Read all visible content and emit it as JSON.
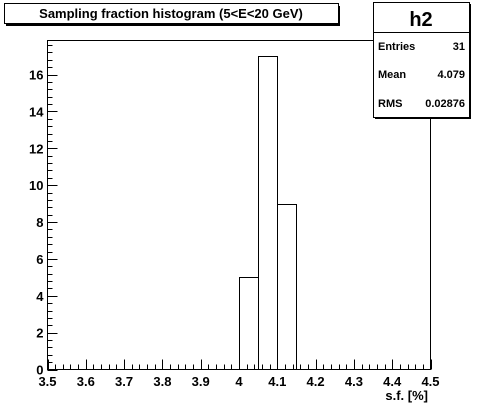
{
  "chart_data": {
    "type": "bar",
    "title": "Sampling fraction histogram (5<E<20 GeV)",
    "xlabel": "s.f. [%]",
    "ylabel": "",
    "xlim": [
      3.5,
      4.5
    ],
    "ylim": [
      0,
      17.85
    ],
    "x_ticks": [
      "3.5",
      "3.6",
      "3.7",
      "3.8",
      "3.9",
      "4",
      "4.1",
      "4.2",
      "4.3",
      "4.4",
      "4.5"
    ],
    "y_ticks": [
      "0",
      "2",
      "4",
      "6",
      "8",
      "10",
      "12",
      "14",
      "16"
    ],
    "grid": false,
    "bins": [
      {
        "x_low": 4.0,
        "x_high": 4.05,
        "value": 5
      },
      {
        "x_low": 4.05,
        "x_high": 4.1,
        "value": 17
      },
      {
        "x_low": 4.1,
        "x_high": 4.15,
        "value": 9
      }
    ],
    "stats_box": {
      "name": "h2",
      "entries_label": "Entries",
      "entries_value": "31",
      "mean_label": "Mean",
      "mean_value": "4.079",
      "rms_label": "RMS",
      "rms_value": "0.02876"
    }
  }
}
